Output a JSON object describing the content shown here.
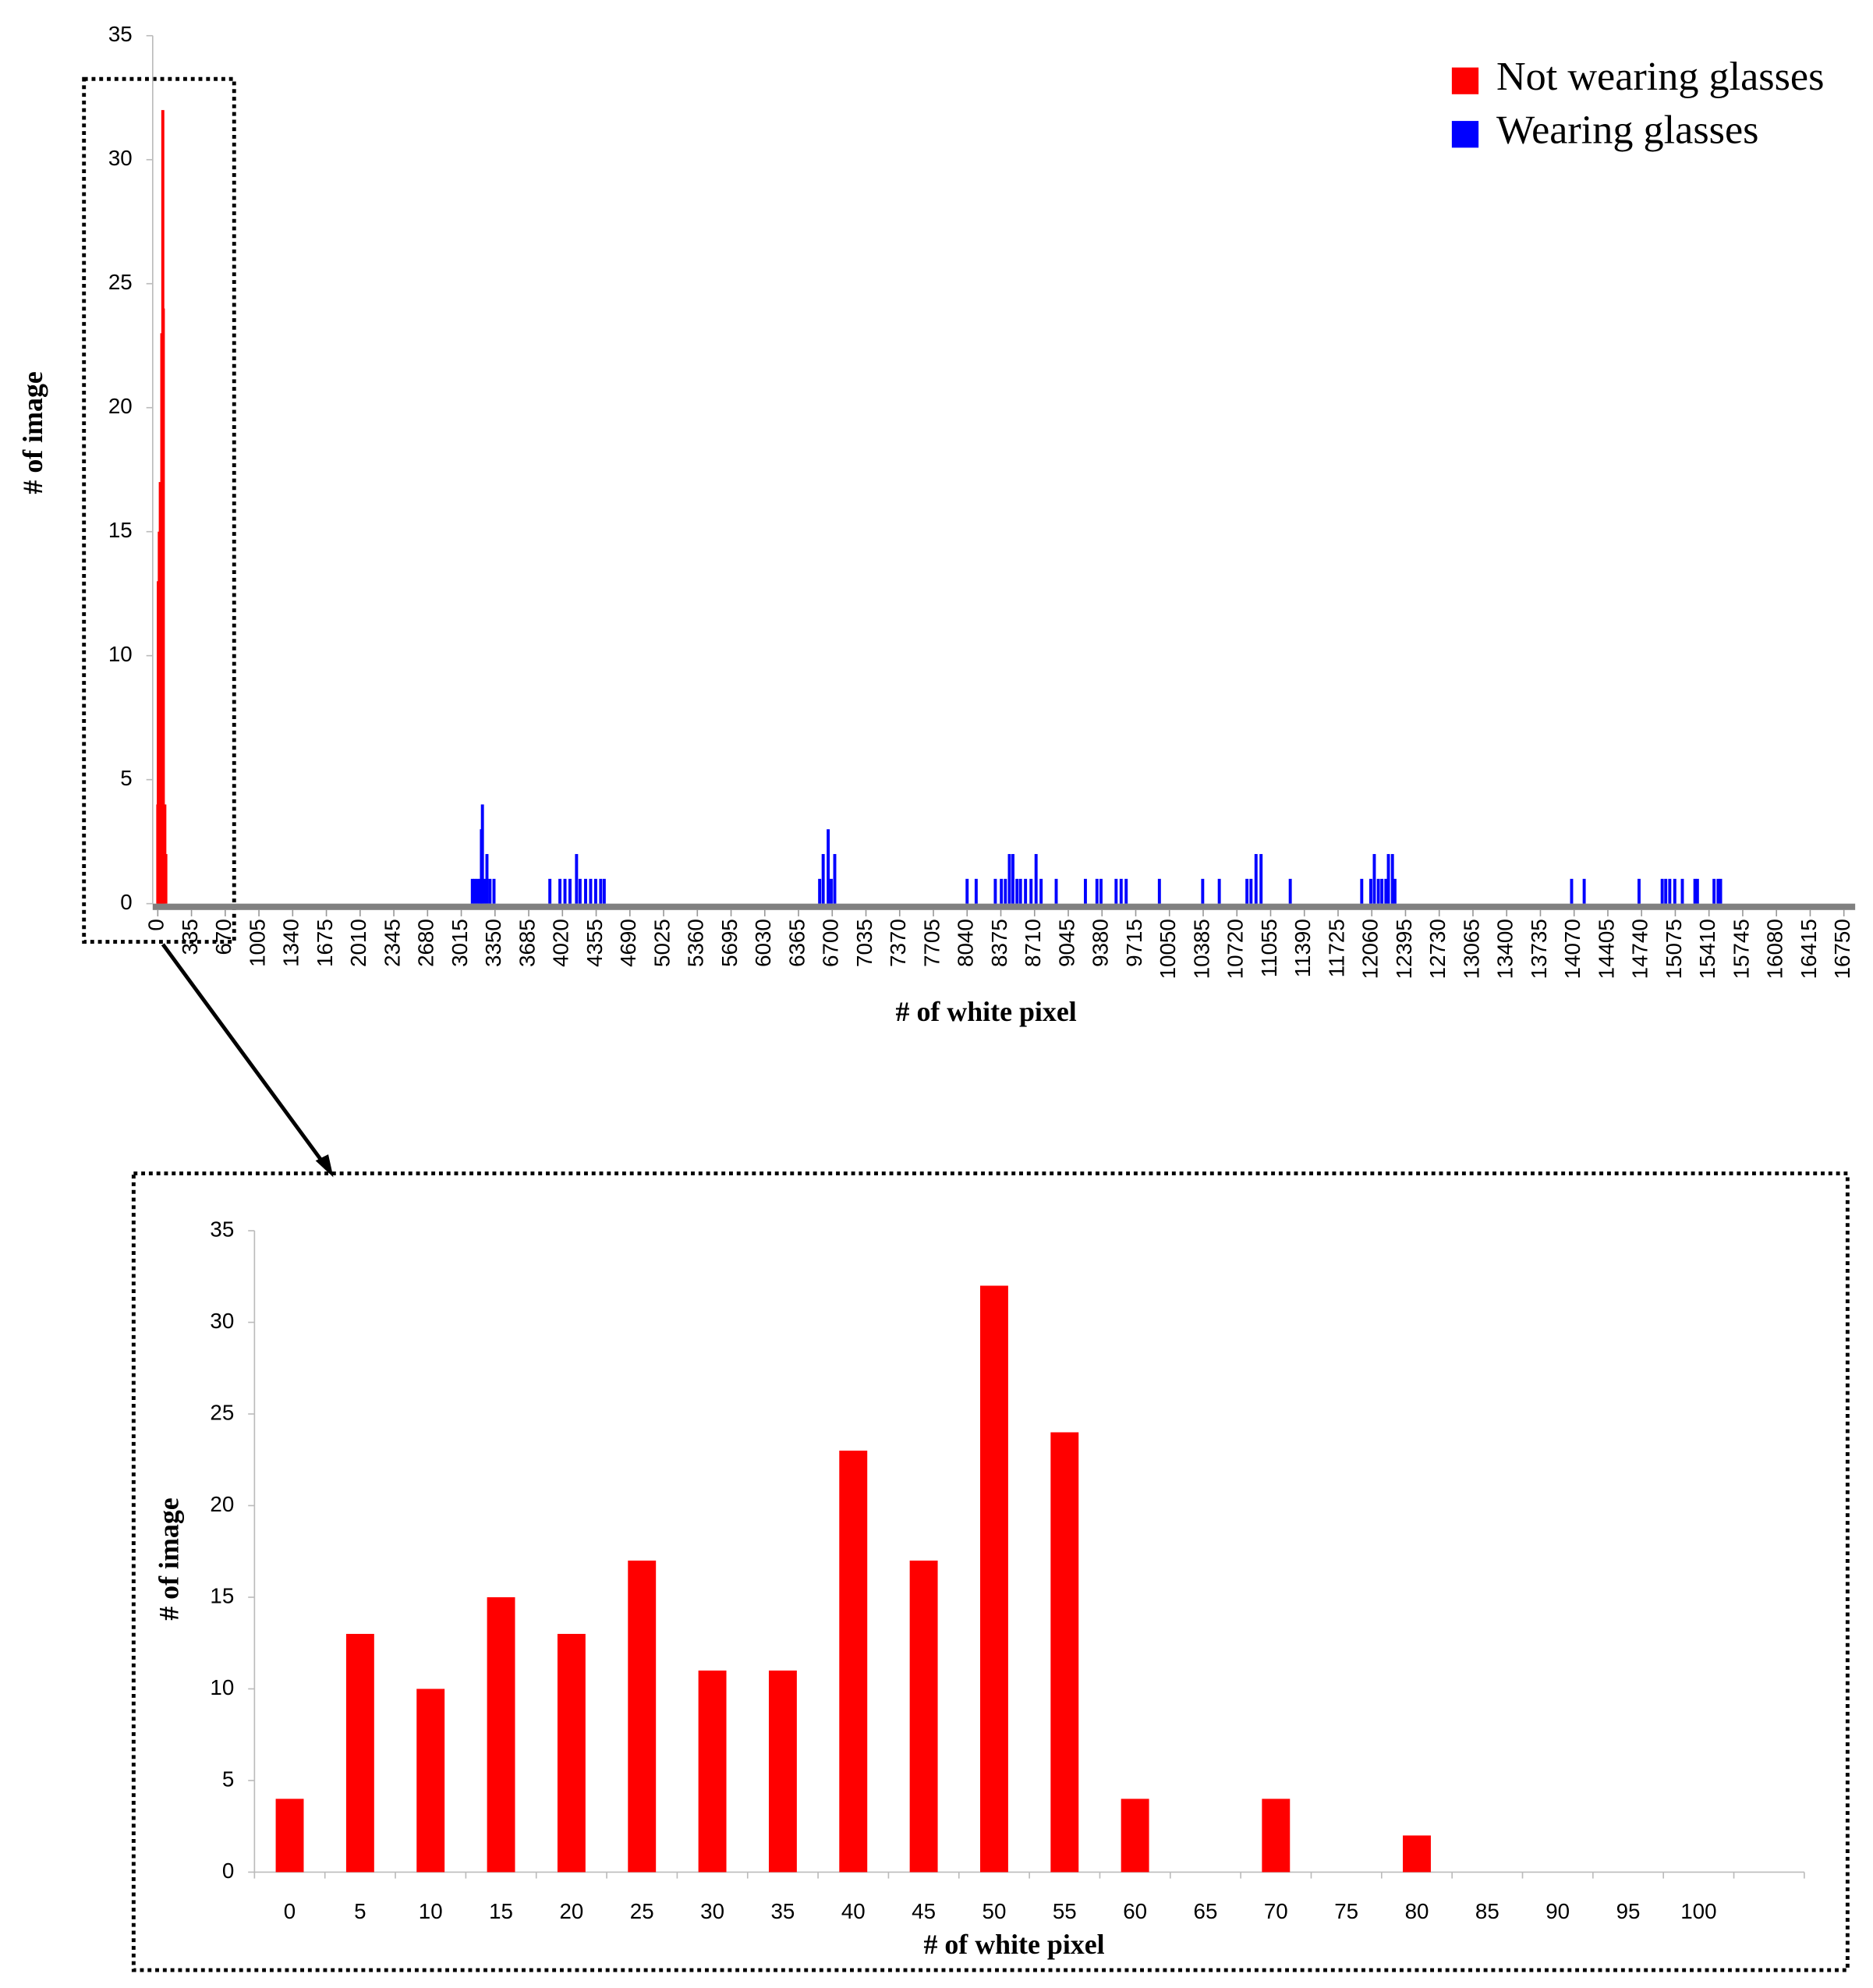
{
  "chart_data": [
    {
      "type": "bar",
      "x_label": "# of white pixel",
      "y_label": "# of image",
      "xlim": [
        0,
        16900
      ],
      "ylim": [
        0,
        35
      ],
      "xticks": [
        0,
        335,
        670,
        1005,
        1340,
        1675,
        2010,
        2345,
        2680,
        3015,
        3350,
        3685,
        4020,
        4355,
        4690,
        5025,
        5360,
        5695,
        6030,
        6365,
        6700,
        7035,
        7370,
        7705,
        8040,
        8375,
        8710,
        9045,
        9380,
        9715,
        10050,
        10385,
        10720,
        11055,
        11390,
        11725,
        12060,
        12395,
        12730,
        13065,
        13400,
        13735,
        14070,
        14405,
        14740,
        15075,
        15410,
        15745,
        16080,
        16415,
        16750
      ],
      "yticks": [
        0,
        5,
        10,
        15,
        20,
        25,
        30,
        35
      ],
      "legend": "top-right",
      "series": [
        {
          "name": "Not wearing glasses",
          "color": "#ff0000",
          "x": [
            0,
            5,
            10,
            15,
            20,
            25,
            30,
            35,
            40,
            45,
            50,
            55,
            60,
            65,
            70,
            75,
            80
          ],
          "values": [
            4,
            13,
            10,
            15,
            13,
            17,
            11,
            11,
            23,
            17,
            32,
            24,
            4,
            0,
            4,
            0,
            2
          ]
        },
        {
          "name": "Wearing glasses",
          "color": "#0000ff",
          "x": [
            3125,
            3150,
            3175,
            3200,
            3215,
            3225,
            3250,
            3270,
            3300,
            3340,
            3895,
            3995,
            4045,
            4095,
            4160,
            4195,
            4250,
            4300,
            4350,
            4400,
            4435,
            6575,
            6610,
            6660,
            6690,
            6725,
            8040,
            8130,
            8320,
            8380,
            8420,
            8460,
            8495,
            8535,
            8570,
            8620,
            8675,
            8725,
            8775,
            8925,
            9215,
            9330,
            9370,
            9520,
            9570,
            9620,
            9950,
            10380,
            10545,
            10820,
            10860,
            10910,
            10960,
            11250,
            11960,
            12050,
            12085,
            12125,
            12160,
            12200,
            12225,
            12265,
            12290,
            14045,
            14170,
            14715,
            14945,
            14980,
            15020,
            15070,
            15145,
            15270,
            15295,
            15460,
            15500,
            15525
          ],
          "values": [
            1,
            1,
            1,
            1,
            3,
            4,
            1,
            2,
            1,
            1,
            1,
            1,
            1,
            1,
            2,
            1,
            1,
            1,
            1,
            1,
            1,
            1,
            2,
            3,
            1,
            2,
            1,
            1,
            1,
            1,
            1,
            2,
            2,
            1,
            1,
            1,
            1,
            2,
            1,
            1,
            1,
            1,
            1,
            1,
            1,
            1,
            1,
            1,
            1,
            1,
            1,
            2,
            2,
            1,
            1,
            1,
            2,
            1,
            1,
            1,
            2,
            2,
            1,
            1,
            1,
            1,
            1,
            1,
            1,
            1,
            1,
            1,
            1,
            1,
            1,
            1
          ]
        }
      ]
    },
    {
      "type": "bar",
      "x_label": "# of white pixel",
      "y_label": "# of image",
      "categories": [
        0,
        5,
        10,
        15,
        20,
        25,
        30,
        35,
        40,
        45,
        50,
        55,
        60,
        65,
        70,
        75,
        80,
        85,
        90,
        95,
        100
      ],
      "values": [
        4,
        13,
        10,
        15,
        13,
        17,
        11,
        11,
        23,
        17,
        32,
        24,
        4,
        0,
        4,
        0,
        2,
        0,
        0,
        0,
        0
      ],
      "color": "#ff0000",
      "ylim": [
        0,
        35
      ],
      "yticks": [
        0,
        5,
        10,
        15,
        20,
        25,
        30,
        35
      ]
    }
  ]
}
